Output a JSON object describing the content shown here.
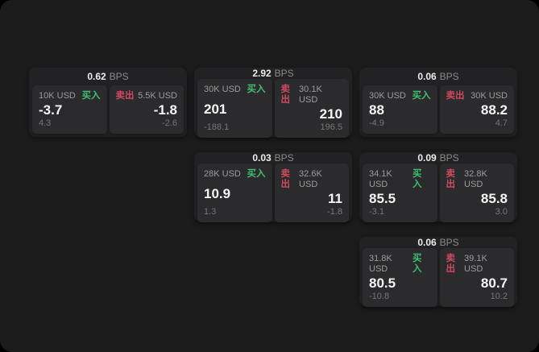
{
  "labels": {
    "buy": "买入",
    "sell": "卖出",
    "bps_unit": "BPS"
  },
  "colors": {
    "buy": "#3fbf72",
    "sell": "#cf4a5e",
    "window_bg": "#1b1b1c",
    "card_bg": "#222224",
    "panel_bg": "#2b2b2d"
  },
  "cards": [
    {
      "col": 0,
      "row": 0,
      "bps": "0.62",
      "buy": {
        "notional": "10K USD",
        "price": "-3.7",
        "delta": "4.3"
      },
      "sell": {
        "notional": "5.5K USD",
        "price": "-1.8",
        "delta": "-2.6"
      }
    },
    {
      "col": 1,
      "row": 0,
      "bps": "2.92",
      "buy": {
        "notional": "30K USD",
        "price": "201",
        "delta": "-188.1"
      },
      "sell": {
        "notional": "30.1K USD",
        "price": "210",
        "delta": "196.5"
      }
    },
    {
      "col": 2,
      "row": 0,
      "bps": "0.06",
      "buy": {
        "notional": "30K USD",
        "price": "88",
        "delta": "-4.9"
      },
      "sell": {
        "notional": "30K USD",
        "price": "88.2",
        "delta": "4.7"
      }
    },
    {
      "col": 1,
      "row": 1,
      "bps": "0.03",
      "buy": {
        "notional": "28K USD",
        "price": "10.9",
        "delta": "1.3"
      },
      "sell": {
        "notional": "32.6K USD",
        "price": "11",
        "delta": "-1.8"
      }
    },
    {
      "col": 2,
      "row": 1,
      "bps": "0.09",
      "buy": {
        "notional": "34.1K USD",
        "price": "85.5",
        "delta": "-3.1"
      },
      "sell": {
        "notional": "32.8K USD",
        "price": "85.8",
        "delta": "3.0"
      }
    },
    {
      "col": 2,
      "row": 2,
      "bps": "0.06",
      "buy": {
        "notional": "31.8K USD",
        "price": "80.5",
        "delta": "-10.8"
      },
      "sell": {
        "notional": "39.1K USD",
        "price": "80.7",
        "delta": "10.2"
      }
    }
  ]
}
